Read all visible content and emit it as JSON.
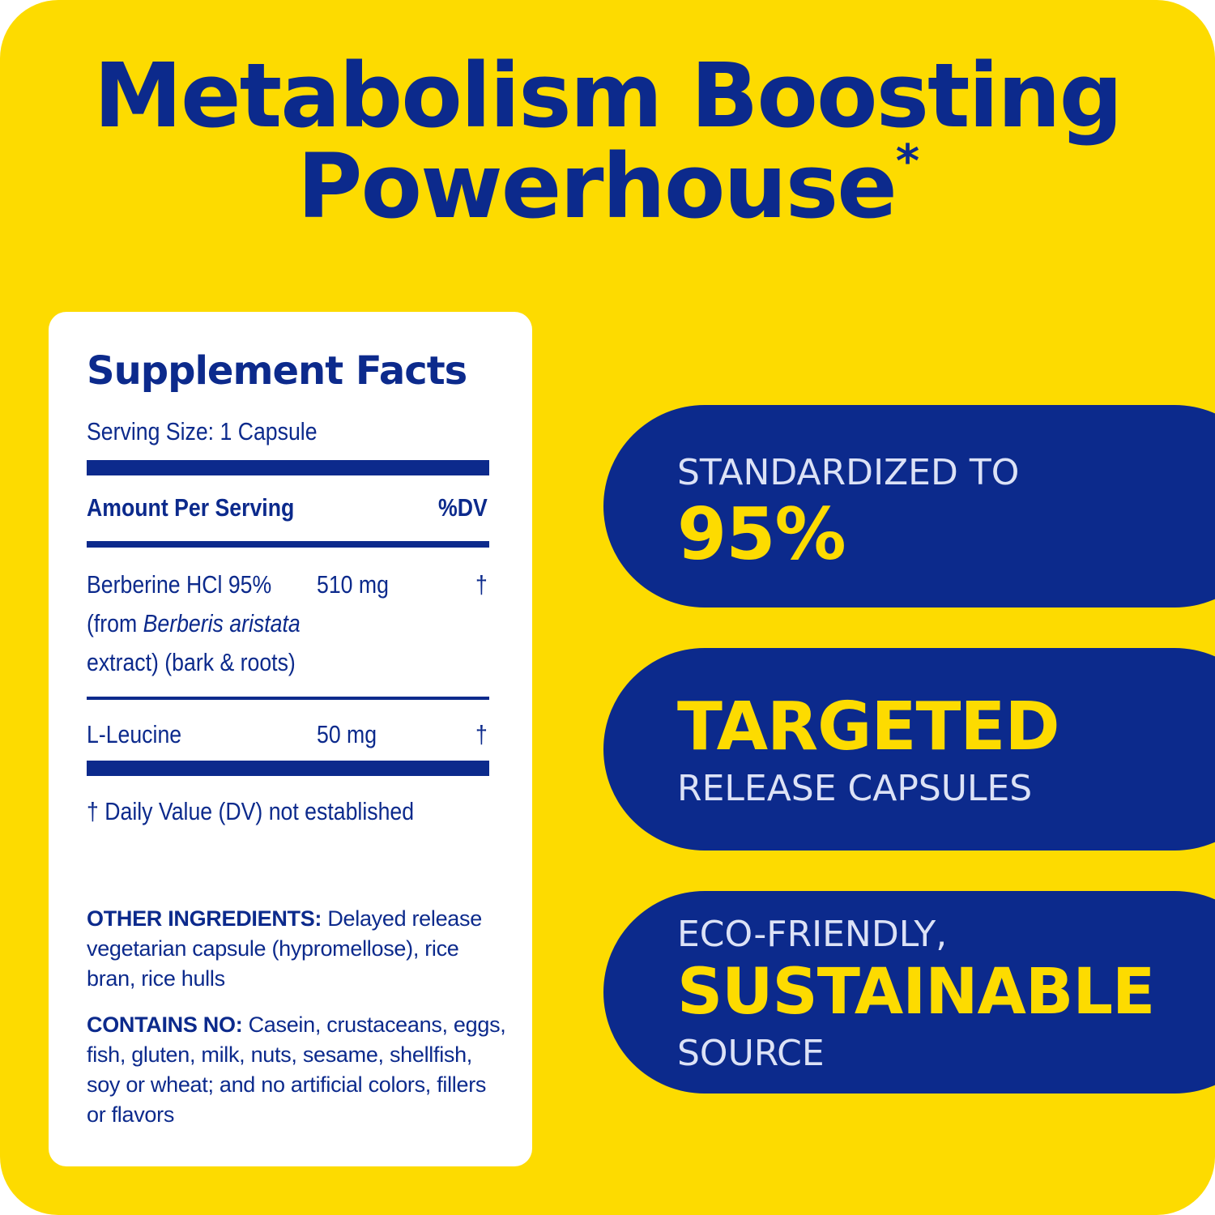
{
  "colors": {
    "background": "#FDDB00",
    "navy": "#0C2A8C",
    "white": "#FFFFFF",
    "light_text": "#DCE2F6"
  },
  "headline": {
    "line1": "Metabolism Boosting",
    "line2": "Powerhouse",
    "asterisk": "*"
  },
  "supplement_facts": {
    "title": "Supplement Facts",
    "serving_size": "Serving Size: 1 Capsule",
    "amount_header": "Amount Per Serving",
    "dv_header": "%DV",
    "rows": [
      {
        "name_line1": "Berberine HCl 95%",
        "name_line2_prefix": "(from ",
        "name_line2_italic": "Berberis aristata",
        "name_line3": "extract) (bark & roots)",
        "amount": "510 mg",
        "dv": "†"
      },
      {
        "name_line1": "L-Leucine",
        "amount": "50 mg",
        "dv": "†"
      }
    ],
    "footnote": "† Daily Value (DV) not established",
    "other_ingredients_label": "OTHER INGREDIENTS:",
    "other_ingredients_text": " Delayed release vegetarian capsule (hypromellose), rice bran, rice hulls",
    "contains_no_label": "CONTAINS NO:",
    "contains_no_text": " Casein, crustaceans, eggs, fish, gluten, milk, nuts, sesame, shellfish, soy or wheat; and no artificial colors, fillers or flavors"
  },
  "badges": [
    {
      "top": "STANDARDIZED TO",
      "big": "95%"
    },
    {
      "big": "TARGETED",
      "bottom": "RELEASE CAPSULES"
    },
    {
      "top": "ECO-FRIENDLY,",
      "big": "SUSTAINABLE",
      "bottom": "SOURCE"
    }
  ]
}
